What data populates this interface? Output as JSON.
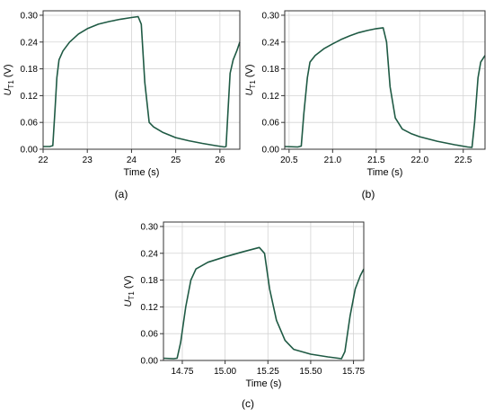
{
  "chart_data": [
    {
      "type": "line",
      "panel_label": "(a)",
      "xlabel": "Time (s)",
      "ylabel_main": "U",
      "ylabel_sub": "T1",
      "ylabel_unit": " (V)",
      "xlim": [
        22.0,
        26.45
      ],
      "ylim": [
        0.0,
        0.31
      ],
      "xticks": [
        22,
        23,
        24,
        25,
        26
      ],
      "xtick_labels": [
        "22",
        "23",
        "24",
        "25",
        "26"
      ],
      "yticks": [
        0.0,
        0.06,
        0.12,
        0.18,
        0.24,
        0.3
      ],
      "ytick_labels": [
        "0.00",
        "0.06",
        "0.12",
        "0.18",
        "0.24",
        "0.30"
      ],
      "grid": true,
      "line_color": "#1f5a44",
      "series": [
        {
          "x": [
            22.0,
            22.15,
            22.22,
            22.27,
            22.31,
            22.36,
            22.45,
            22.6,
            22.8,
            23.0,
            23.25,
            23.5,
            23.75,
            24.0,
            24.15,
            24.22,
            24.3,
            24.4,
            24.5,
            24.7,
            25.0,
            25.3,
            25.6,
            25.9,
            26.1,
            26.14,
            26.18,
            26.23,
            26.3,
            26.38,
            26.45
          ],
          "y": [
            0.006,
            0.006,
            0.008,
            0.09,
            0.16,
            0.2,
            0.22,
            0.24,
            0.258,
            0.27,
            0.28,
            0.286,
            0.291,
            0.295,
            0.297,
            0.28,
            0.15,
            0.06,
            0.05,
            0.038,
            0.026,
            0.019,
            0.013,
            0.008,
            0.005,
            0.006,
            0.08,
            0.17,
            0.2,
            0.22,
            0.24
          ]
        }
      ]
    },
    {
      "type": "line",
      "panel_label": "(b)",
      "xlabel": "Time (s)",
      "ylabel_main": "U",
      "ylabel_sub": "T1",
      "ylabel_unit": " (V)",
      "xlim": [
        20.45,
        22.75
      ],
      "ylim": [
        0.0,
        0.31
      ],
      "xticks": [
        20.5,
        21.0,
        21.5,
        22.0,
        22.5
      ],
      "xtick_labels": [
        "20.5",
        "21.0",
        "21.5",
        "22.0",
        "22.5"
      ],
      "yticks": [
        0.0,
        0.06,
        0.12,
        0.18,
        0.24,
        0.3
      ],
      "ytick_labels": [
        "0.00",
        "0.06",
        "0.12",
        "0.18",
        "0.24",
        "0.30"
      ],
      "grid": true,
      "line_color": "#1f5a44",
      "series": [
        {
          "x": [
            20.45,
            20.6,
            20.64,
            20.67,
            20.71,
            20.74,
            20.8,
            20.9,
            21.0,
            21.1,
            21.2,
            21.3,
            21.4,
            21.5,
            21.58,
            21.62,
            21.66,
            21.72,
            21.8,
            21.9,
            22.0,
            22.2,
            22.4,
            22.55,
            22.6,
            22.63,
            22.67,
            22.7,
            22.75
          ],
          "y": [
            0.006,
            0.005,
            0.007,
            0.08,
            0.16,
            0.195,
            0.21,
            0.225,
            0.236,
            0.246,
            0.254,
            0.261,
            0.266,
            0.27,
            0.272,
            0.24,
            0.14,
            0.07,
            0.045,
            0.035,
            0.028,
            0.018,
            0.01,
            0.005,
            0.004,
            0.06,
            0.16,
            0.195,
            0.21
          ]
        }
      ]
    },
    {
      "type": "line",
      "panel_label": "(c)",
      "xlabel": "Time (s)",
      "ylabel_main": "U",
      "ylabel_sub": "T1",
      "ylabel_unit": " (V)",
      "xlim": [
        14.64,
        15.81
      ],
      "ylim": [
        0.0,
        0.31
      ],
      "xticks": [
        14.75,
        15.0,
        15.25,
        15.5,
        15.75
      ],
      "xtick_labels": [
        "14.75",
        "15.00",
        "15.25",
        "15.50",
        "15.75"
      ],
      "yticks": [
        0.0,
        0.06,
        0.12,
        0.18,
        0.24,
        0.3
      ],
      "ytick_labels": [
        "0.00",
        "0.06",
        "0.12",
        "0.18",
        "0.24",
        "0.30"
      ],
      "grid": true,
      "line_color": "#1f5a44",
      "series": [
        {
          "x": [
            14.64,
            14.7,
            14.72,
            14.74,
            14.77,
            14.8,
            14.83,
            14.9,
            15.0,
            15.1,
            15.2,
            15.23,
            15.26,
            15.3,
            15.35,
            15.4,
            15.5,
            15.6,
            15.68,
            15.7,
            15.73,
            15.76,
            15.79,
            15.81
          ],
          "y": [
            0.005,
            0.004,
            0.005,
            0.04,
            0.12,
            0.18,
            0.205,
            0.22,
            0.232,
            0.243,
            0.253,
            0.24,
            0.16,
            0.09,
            0.045,
            0.025,
            0.014,
            0.008,
            0.004,
            0.02,
            0.1,
            0.16,
            0.19,
            0.205
          ]
        }
      ]
    }
  ]
}
